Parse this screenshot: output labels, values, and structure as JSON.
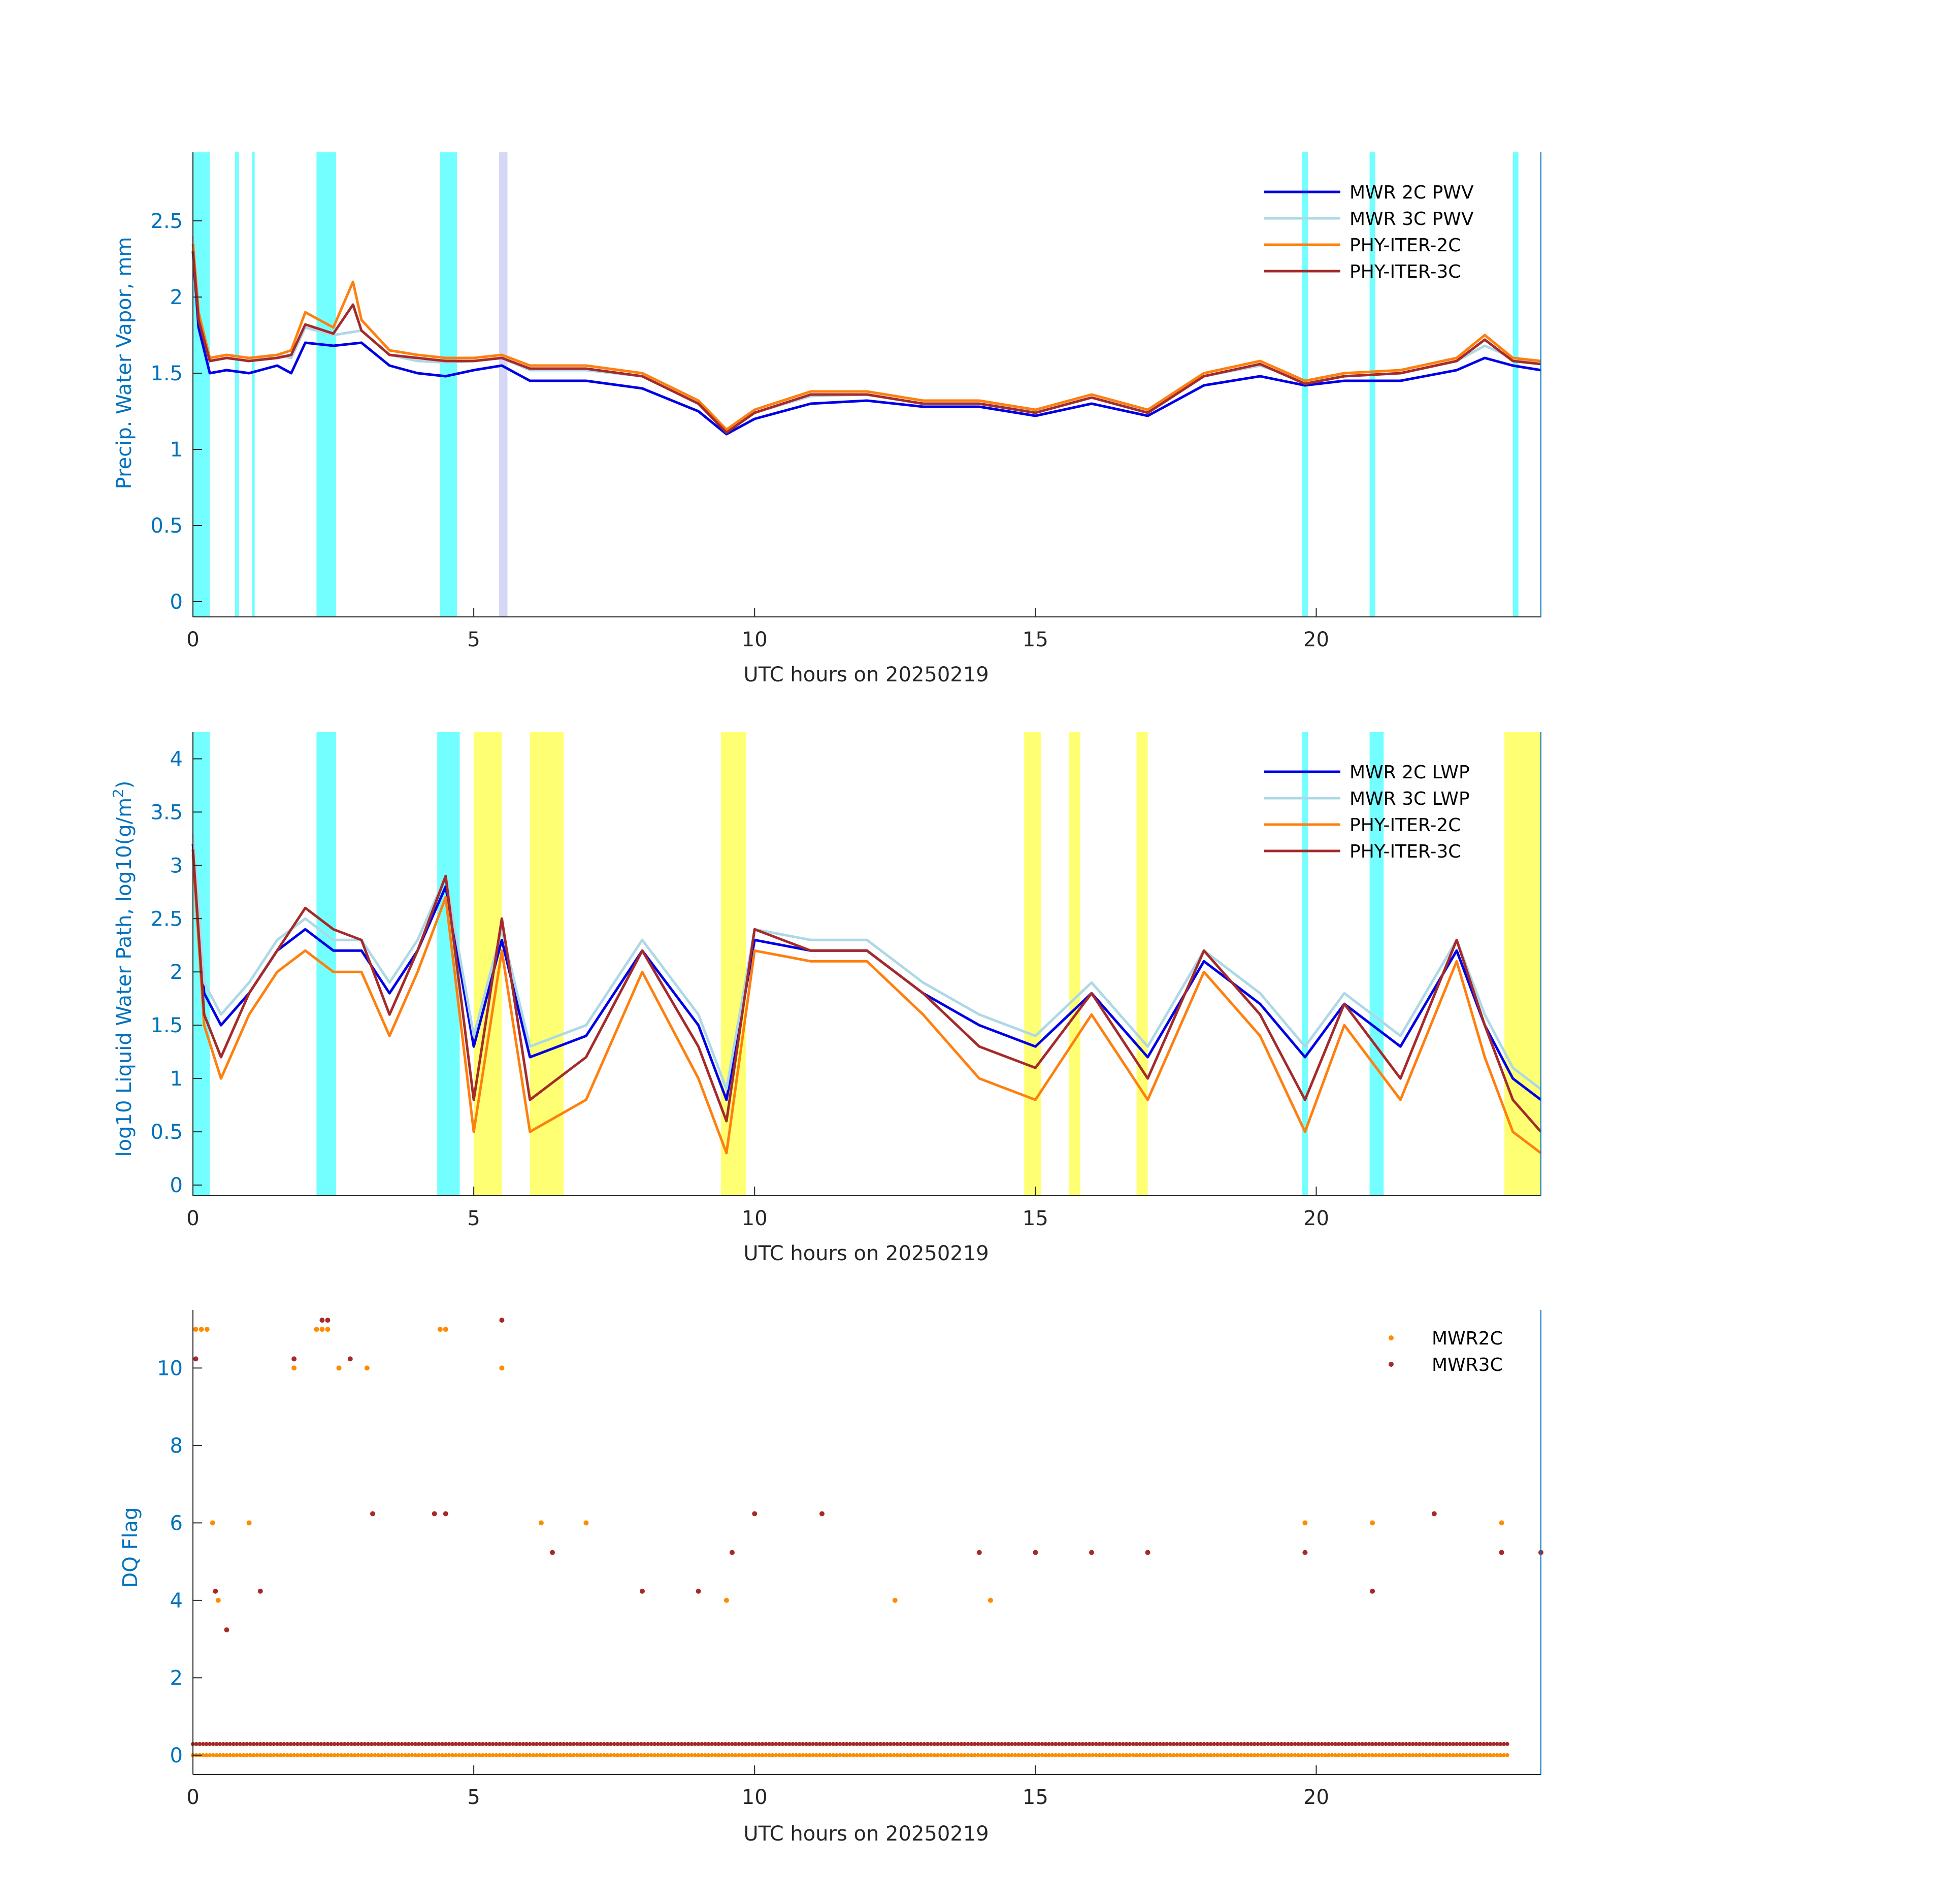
{
  "colors": {
    "mwr2c": "#0000e6",
    "mwr3c": "#add8e6",
    "phy2c": "#ff7f0e",
    "phy3c": "#a52a2a",
    "dq_mwr2c": "#ff8c00",
    "dq_mwr3c": "#a52a2a",
    "shade_cyan": "#00ffff",
    "shade_yellow": "#ffff00",
    "shade_gray": "#b4b4b4",
    "shade_lavender": "#b4b4f0",
    "shade_pink": "#f5c8d2",
    "axis_blue": "#0072bd"
  },
  "chart_data": [
    {
      "type": "line",
      "title": "",
      "xlabel": "UTC hours on 20250219",
      "ylabel": "Precip. Water Vapor, mm",
      "xlim": [
        0,
        24
      ],
      "ylim": [
        -0.1,
        2.95
      ],
      "xticks": [
        0,
        5,
        10,
        15,
        20
      ],
      "yticks": [
        0,
        0.5,
        1,
        1.5,
        2,
        2.5
      ],
      "ytick_labels": [
        "0",
        "0.5",
        "1",
        "1.5",
        "2",
        "2.5"
      ],
      "legend_position": "top-right",
      "shading": [
        {
          "x": [
            0,
            0.3
          ],
          "color": "cyan"
        },
        {
          "x": [
            0.75,
            0.82
          ],
          "color": "cyan"
        },
        {
          "x": [
            1.05,
            1.1
          ],
          "color": "cyan"
        },
        {
          "x": [
            2.2,
            2.55
          ],
          "color": "cyan"
        },
        {
          "x": [
            4.4,
            4.7
          ],
          "color": "cyan"
        },
        {
          "x": [
            5.45,
            5.6
          ],
          "color": "lavender"
        },
        {
          "x": [
            19.75,
            19.85
          ],
          "color": "cyan"
        },
        {
          "x": [
            20.95,
            21.05
          ],
          "color": "cyan"
        },
        {
          "x": [
            23.5,
            23.6
          ],
          "color": "cyan"
        }
      ],
      "series": [
        {
          "name": "MWR 2C PWV",
          "x": [
            0,
            0.1,
            0.3,
            0.6,
            1.0,
            1.5,
            1.75,
            2.0,
            2.5,
            3.0,
            3.5,
            4.0,
            4.5,
            5.0,
            5.5,
            6.0,
            7.0,
            8.0,
            9.0,
            9.5,
            10.0,
            11.0,
            12.0,
            13.0,
            14.0,
            15.0,
            16.0,
            17.0,
            18.0,
            19.0,
            19.8,
            20.5,
            21.5,
            22.5,
            23.0,
            23.5,
            24.0
          ],
          "y": [
            2.3,
            1.8,
            1.5,
            1.52,
            1.5,
            1.55,
            1.5,
            1.7,
            1.68,
            1.7,
            1.55,
            1.5,
            1.48,
            1.52,
            1.55,
            1.45,
            1.45,
            1.4,
            1.25,
            1.1,
            1.2,
            1.3,
            1.32,
            1.28,
            1.28,
            1.22,
            1.3,
            1.22,
            1.42,
            1.48,
            1.42,
            1.45,
            1.45,
            1.52,
            1.6,
            1.55,
            1.52
          ]
        },
        {
          "name": "MWR 3C PWV",
          "x": [
            0,
            0.1,
            0.3,
            0.6,
            1.0,
            1.5,
            1.75,
            2.0,
            2.5,
            3.0,
            3.5,
            4.0,
            4.5,
            5.0,
            5.5,
            6.0,
            7.0,
            8.0,
            9.0,
            9.5,
            10.0,
            11.0,
            12.0,
            13.0,
            14.0,
            15.0,
            16.0,
            17.0,
            18.0,
            19.0,
            19.8,
            20.5,
            21.5,
            22.5,
            23.0,
            23.5,
            24.0
          ],
          "y": [
            2.4,
            1.9,
            1.58,
            1.6,
            1.58,
            1.62,
            1.6,
            1.8,
            1.75,
            1.78,
            1.62,
            1.58,
            1.57,
            1.58,
            1.6,
            1.52,
            1.52,
            1.48,
            1.3,
            1.13,
            1.24,
            1.35,
            1.36,
            1.3,
            1.3,
            1.25,
            1.34,
            1.25,
            1.48,
            1.55,
            1.45,
            1.48,
            1.5,
            1.58,
            1.68,
            1.6,
            1.56
          ]
        },
        {
          "name": "PHY-ITER-2C",
          "x": [
            0,
            0.1,
            0.3,
            0.6,
            1.0,
            1.5,
            1.75,
            2.0,
            2.5,
            2.85,
            3.0,
            3.5,
            4.0,
            4.5,
            5.0,
            5.5,
            6.0,
            7.0,
            8.0,
            9.0,
            9.5,
            10.0,
            11.0,
            12.0,
            13.0,
            14.0,
            15.0,
            16.0,
            17.0,
            18.0,
            19.0,
            19.8,
            20.5,
            21.5,
            22.5,
            23.0,
            23.5,
            24.0
          ],
          "y": [
            2.35,
            1.9,
            1.6,
            1.62,
            1.6,
            1.62,
            1.65,
            1.9,
            1.8,
            2.1,
            1.85,
            1.65,
            1.62,
            1.6,
            1.6,
            1.62,
            1.55,
            1.55,
            1.5,
            1.32,
            1.13,
            1.26,
            1.38,
            1.38,
            1.32,
            1.32,
            1.26,
            1.36,
            1.26,
            1.5,
            1.58,
            1.45,
            1.5,
            1.52,
            1.6,
            1.75,
            1.6,
            1.58
          ]
        },
        {
          "name": "PHY-ITER-3C",
          "x": [
            0,
            0.1,
            0.3,
            0.6,
            1.0,
            1.5,
            1.75,
            2.0,
            2.5,
            2.85,
            3.0,
            3.5,
            4.0,
            4.5,
            5.0,
            5.5,
            6.0,
            7.0,
            8.0,
            9.0,
            9.5,
            10.0,
            11.0,
            12.0,
            13.0,
            14.0,
            15.0,
            16.0,
            17.0,
            18.0,
            19.0,
            19.8,
            20.5,
            21.5,
            22.5,
            23.0,
            23.5,
            24.0
          ],
          "y": [
            2.3,
            1.85,
            1.58,
            1.6,
            1.58,
            1.6,
            1.62,
            1.82,
            1.76,
            1.95,
            1.78,
            1.62,
            1.6,
            1.58,
            1.58,
            1.6,
            1.53,
            1.53,
            1.48,
            1.3,
            1.11,
            1.24,
            1.36,
            1.36,
            1.3,
            1.3,
            1.24,
            1.34,
            1.24,
            1.48,
            1.56,
            1.43,
            1.48,
            1.5,
            1.58,
            1.72,
            1.58,
            1.56
          ]
        }
      ]
    },
    {
      "type": "line",
      "title": "",
      "xlabel": "UTC hours on 20250219",
      "ylabel_text": "log10 Liquid Water Path, log10(g/m",
      "ylabel_sup": "2",
      "ylabel_end": ")",
      "xlim": [
        0,
        24
      ],
      "ylim": [
        -0.1,
        4.25
      ],
      "xticks": [
        0,
        5,
        10,
        15,
        20
      ],
      "yticks": [
        0,
        0.5,
        1,
        1.5,
        2,
        2.5,
        3,
        3.5,
        4
      ],
      "ytick_labels": [
        "0",
        "0.5",
        "1",
        "1.5",
        "2",
        "2.5",
        "3",
        "3.5",
        "4"
      ],
      "legend_position": "top-right",
      "shading": [
        {
          "x": [
            0,
            0.3
          ],
          "color": "cyan"
        },
        {
          "x": [
            2.2,
            2.55
          ],
          "color": "cyan"
        },
        {
          "x": [
            4.35,
            4.75
          ],
          "color": "cyan"
        },
        {
          "x": [
            5.0,
            5.5
          ],
          "color": "yellow"
        },
        {
          "x": [
            6.0,
            6.6
          ],
          "color": "yellow"
        },
        {
          "x": [
            9.4,
            9.85
          ],
          "color": "yellow"
        },
        {
          "x": [
            14.8,
            15.1
          ],
          "color": "yellow"
        },
        {
          "x": [
            15.6,
            15.8
          ],
          "color": "yellow"
        },
        {
          "x": [
            16.8,
            17.0
          ],
          "color": "yellow"
        },
        {
          "x": [
            19.75,
            19.85
          ],
          "color": "cyan"
        },
        {
          "x": [
            20.95,
            21.2
          ],
          "color": "cyan"
        },
        {
          "x": [
            23.35,
            24.0
          ],
          "color": "yellow"
        }
      ],
      "series": [
        {
          "name": "MWR 2C LWP",
          "x": [
            0,
            0.2,
            0.5,
            1.0,
            1.5,
            2.0,
            2.5,
            3.0,
            3.5,
            4.0,
            4.5,
            5.0,
            5.5,
            6.0,
            7.0,
            8.0,
            9.0,
            9.5,
            10.0,
            11.0,
            12.0,
            13.0,
            14.0,
            15.0,
            16.0,
            17.0,
            18.0,
            19.0,
            19.8,
            20.5,
            21.5,
            22.5,
            23.0,
            23.5,
            24.0
          ],
          "y": [
            3.2,
            1.8,
            1.5,
            1.8,
            2.2,
            2.4,
            2.2,
            2.2,
            1.8,
            2.2,
            2.8,
            1.3,
            2.3,
            1.2,
            1.4,
            2.2,
            1.5,
            0.8,
            2.3,
            2.2,
            2.2,
            1.8,
            1.5,
            1.3,
            1.8,
            1.2,
            2.1,
            1.7,
            1.2,
            1.7,
            1.3,
            2.2,
            1.5,
            1.0,
            0.8
          ]
        },
        {
          "name": "MWR 3C LWP",
          "x": [
            0,
            0.2,
            0.5,
            1.0,
            1.5,
            2.0,
            2.5,
            3.0,
            3.5,
            4.0,
            4.5,
            5.0,
            5.5,
            6.0,
            7.0,
            8.0,
            9.0,
            9.5,
            10.0,
            11.0,
            12.0,
            13.0,
            14.0,
            15.0,
            16.0,
            17.0,
            18.0,
            19.0,
            19.8,
            20.5,
            21.5,
            22.5,
            23.0,
            23.5,
            24.0
          ],
          "y": [
            3.3,
            1.9,
            1.6,
            1.9,
            2.3,
            2.5,
            2.3,
            2.3,
            1.9,
            2.3,
            2.9,
            1.4,
            2.4,
            1.3,
            1.5,
            2.3,
            1.6,
            0.9,
            2.4,
            2.3,
            2.3,
            1.9,
            1.6,
            1.4,
            1.9,
            1.3,
            2.2,
            1.8,
            1.3,
            1.8,
            1.4,
            2.3,
            1.6,
            1.1,
            0.9
          ]
        },
        {
          "name": "PHY-ITER-2C",
          "x": [
            0,
            0.2,
            0.5,
            1.0,
            1.5,
            2.0,
            2.5,
            3.0,
            3.5,
            4.0,
            4.5,
            5.0,
            5.5,
            6.0,
            7.0,
            8.0,
            9.0,
            9.5,
            10.0,
            11.0,
            12.0,
            13.0,
            14.0,
            15.0,
            16.0,
            17.0,
            18.0,
            19.0,
            19.8,
            20.5,
            21.5,
            22.5,
            23.0,
            23.5,
            24.0
          ],
          "y": [
            3.1,
            1.5,
            1.0,
            1.6,
            2.0,
            2.2,
            2.0,
            2.0,
            1.4,
            2.0,
            2.7,
            0.5,
            2.2,
            0.5,
            0.8,
            2.0,
            1.0,
            0.3,
            2.2,
            2.1,
            2.1,
            1.6,
            1.0,
            0.8,
            1.6,
            0.8,
            2.0,
            1.4,
            0.5,
            1.5,
            0.8,
            2.1,
            1.2,
            0.5,
            0.3
          ]
        },
        {
          "name": "PHY-ITER-3C",
          "x": [
            0,
            0.2,
            0.5,
            1.0,
            1.5,
            2.0,
            2.5,
            3.0,
            3.5,
            4.0,
            4.5,
            5.0,
            5.5,
            6.0,
            7.0,
            8.0,
            9.0,
            9.5,
            10.0,
            11.0,
            12.0,
            13.0,
            14.0,
            15.0,
            16.0,
            17.0,
            18.0,
            19.0,
            19.8,
            20.5,
            21.5,
            22.5,
            23.0,
            23.5,
            24.0
          ],
          "y": [
            3.15,
            1.6,
            1.2,
            1.8,
            2.2,
            2.6,
            2.4,
            2.3,
            1.6,
            2.2,
            2.9,
            0.8,
            2.5,
            0.8,
            1.2,
            2.2,
            1.3,
            0.6,
            2.4,
            2.2,
            2.2,
            1.8,
            1.3,
            1.1,
            1.8,
            1.0,
            2.2,
            1.6,
            0.8,
            1.7,
            1.0,
            2.3,
            1.5,
            0.8,
            0.5
          ]
        }
      ]
    },
    {
      "type": "scatter",
      "title": "",
      "xlabel": "UTC hours on 20250219",
      "ylabel": "DQ Flag",
      "xlim": [
        0,
        24
      ],
      "ylim": [
        -0.5,
        11.5
      ],
      "xticks": [
        0,
        5,
        10,
        15,
        20
      ],
      "yticks": [
        0,
        2,
        4,
        6,
        8,
        10
      ],
      "ytick_labels": [
        "0",
        "2",
        "4",
        "6",
        "8",
        "10"
      ],
      "legend_position": "top-right",
      "series": [
        {
          "name": "MWR2C",
          "x": [
            0.05,
            0.15,
            0.25,
            0.35,
            0.45,
            1.0,
            1.8,
            2.2,
            2.3,
            2.4,
            2.6,
            3.1,
            4.4,
            4.5,
            5.5,
            6.2,
            7.0,
            9.5,
            12.5,
            14.2,
            19.8,
            21.0,
            23.3
          ],
          "y": [
            11,
            11,
            11,
            6,
            4,
            6,
            10,
            11,
            11,
            11,
            10,
            10,
            11,
            11,
            10,
            6,
            6,
            4,
            4,
            4,
            6,
            6,
            6
          ]
        },
        {
          "name": "MWR3C",
          "x": [
            0.05,
            0.4,
            0.6,
            1.2,
            1.8,
            2.3,
            2.4,
            2.8,
            3.2,
            4.3,
            4.5,
            5.5,
            6.4,
            8.0,
            9.0,
            9.6,
            10.0,
            11.2,
            14.0,
            15.0,
            16.0,
            17.0,
            19.8,
            21.0,
            22.1,
            23.3,
            24.0
          ],
          "y": [
            10,
            4,
            3,
            4,
            10,
            11,
            11,
            10,
            6,
            6,
            6,
            11,
            5,
            4,
            4,
            5,
            6,
            6,
            5,
            5,
            5,
            5,
            5,
            4,
            6,
            5,
            5
          ]
        }
      ]
    }
  ]
}
